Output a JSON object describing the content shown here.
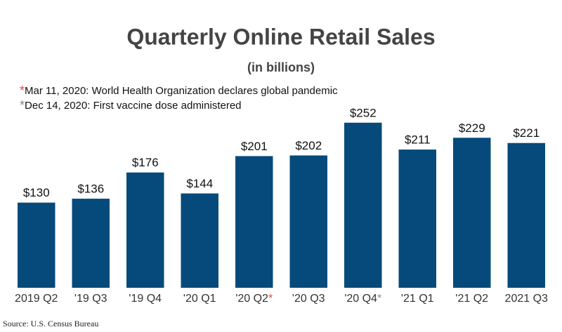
{
  "chart_data": {
    "type": "bar",
    "title": "Quarterly Online Retail Sales",
    "subtitle": "(in billions)",
    "annotations": [
      {
        "marker": "*",
        "color": "#e8453c",
        "text": "Mar 11, 2020: World Health Organization declares global pandemic"
      },
      {
        "marker": "*",
        "color": "#888888",
        "text": "Dec 14, 2020: First vaccine dose administered"
      }
    ],
    "categories": [
      "2019 Q2",
      "'19 Q3",
      "'19 Q4",
      "'20 Q1",
      "'20 Q2*",
      "'20 Q3",
      "'20 Q4*",
      "'21 Q1",
      "'21 Q2",
      "2021 Q3"
    ],
    "values": [
      130,
      136,
      176,
      144,
      201,
      202,
      252,
      211,
      229,
      221
    ],
    "value_labels": [
      "$130",
      "$136",
      "$176",
      "$144",
      "$201",
      "$202",
      "$252",
      "$211",
      "$229",
      "$221"
    ],
    "color": "#054a7a",
    "ylim": [
      0,
      270
    ],
    "grid": false,
    "source": "Source: U.S. Census Bureau"
  }
}
